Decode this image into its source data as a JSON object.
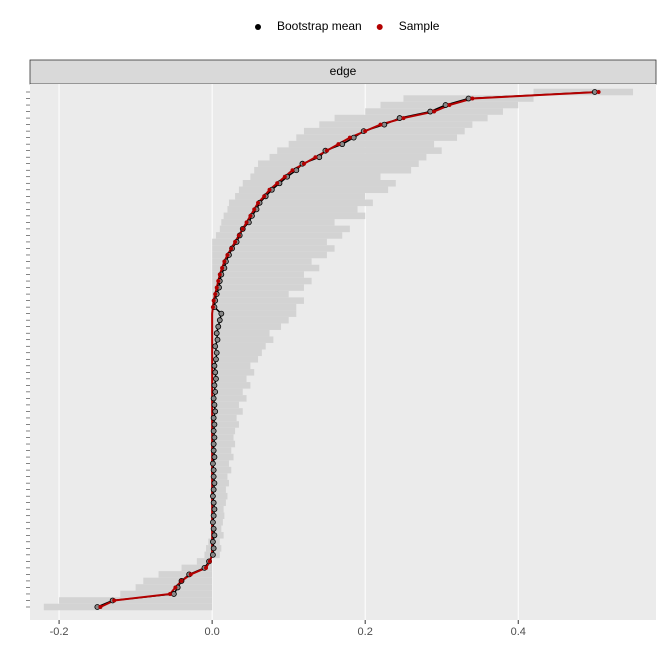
{
  "chart_data": {
    "type": "stability",
    "facet": "edge",
    "series": [
      {
        "name": "Bootstrap mean",
        "color": "#000000",
        "values": [
          -0.15,
          -0.13,
          -0.05,
          -0.045,
          -0.04,
          -0.03,
          -0.01,
          -0.004,
          0.001,
          0.002,
          0.001,
          0.003,
          0.002,
          0.001,
          0.002,
          0.003,
          0.002,
          0.001,
          0.002,
          0.003,
          0.002,
          0.002,
          0.001,
          0.003,
          0.002,
          0.002,
          0.003,
          0.002,
          0.003,
          0.002,
          0.004,
          0.003,
          0.002,
          0.004,
          0.003,
          0.005,
          0.004,
          0.003,
          0.005,
          0.006,
          0.004,
          0.007,
          0.006,
          0.008,
          0.01,
          0.012,
          0.003,
          0.004,
          0.006,
          0.009,
          0.01,
          0.012,
          0.016,
          0.018,
          0.022,
          0.026,
          0.032,
          0.036,
          0.04,
          0.048,
          0.052,
          0.058,
          0.062,
          0.07,
          0.078,
          0.088,
          0.098,
          0.11,
          0.118,
          0.14,
          0.148,
          0.17,
          0.185,
          0.198,
          0.225,
          0.245,
          0.285,
          0.305,
          0.335,
          0.5
        ]
      },
      {
        "name": "Sample",
        "color": "#b30000",
        "values": [
          -0.146,
          -0.128,
          -0.055,
          -0.048,
          -0.04,
          -0.028,
          -0.008,
          -0.003,
          0,
          0,
          0,
          0,
          0,
          0,
          0,
          0,
          0,
          0,
          0,
          0,
          0,
          0,
          0,
          0,
          0,
          0,
          0,
          0,
          0,
          0,
          0,
          0,
          0,
          0,
          0,
          0,
          0,
          0,
          0,
          0,
          0,
          0,
          0,
          0,
          0,
          0,
          0.001,
          0.002,
          0.004,
          0.006,
          0.008,
          0.01,
          0.013,
          0.016,
          0.02,
          0.025,
          0.03,
          0.035,
          0.04,
          0.045,
          0.05,
          0.055,
          0.06,
          0.068,
          0.075,
          0.085,
          0.095,
          0.105,
          0.12,
          0.135,
          0.15,
          0.165,
          0.18,
          0.2,
          0.22,
          0.25,
          0.29,
          0.31,
          0.34,
          0.505
        ]
      }
    ],
    "ci_lower": [
      -0.22,
      -0.2,
      -0.12,
      -0.1,
      -0.09,
      -0.07,
      -0.04,
      -0.02,
      -0.01,
      -0.008,
      -0.005,
      0,
      0,
      0,
      0,
      0,
      0,
      0,
      0,
      0,
      0,
      0,
      0,
      0,
      0,
      0,
      0,
      0,
      0,
      0,
      0,
      0,
      0,
      0,
      0,
      0,
      0,
      0,
      0,
      0,
      0,
      0,
      0,
      0,
      0,
      0,
      0,
      0,
      0,
      0,
      0,
      0,
      0,
      0,
      0,
      0,
      0,
      0.005,
      0.01,
      0.012,
      0.015,
      0.02,
      0.022,
      0.03,
      0.035,
      0.04,
      0.05,
      0.055,
      0.06,
      0.075,
      0.085,
      0.1,
      0.11,
      0.12,
      0.14,
      0.16,
      0.2,
      0.22,
      0.25,
      0.42
    ],
    "ci_upper": [
      0,
      0,
      0,
      0,
      0,
      0,
      0,
      0,
      0.01,
      0.012,
      0.01,
      0.015,
      0.012,
      0.014,
      0.016,
      0.015,
      0.018,
      0.02,
      0.018,
      0.022,
      0.02,
      0.025,
      0.022,
      0.028,
      0.025,
      0.03,
      0.028,
      0.03,
      0.035,
      0.032,
      0.04,
      0.035,
      0.045,
      0.04,
      0.05,
      0.045,
      0.055,
      0.05,
      0.06,
      0.065,
      0.07,
      0.08,
      0.075,
      0.09,
      0.1,
      0.11,
      0.11,
      0.12,
      0.1,
      0.12,
      0.13,
      0.12,
      0.14,
      0.13,
      0.15,
      0.16,
      0.15,
      0.17,
      0.18,
      0.16,
      0.2,
      0.19,
      0.21,
      0.2,
      0.23,
      0.24,
      0.22,
      0.26,
      0.27,
      0.28,
      0.3,
      0.29,
      0.32,
      0.33,
      0.34,
      0.36,
      0.38,
      0.4,
      0.42,
      0.55
    ],
    "ci_color": "#d3d3d3",
    "xlim": [
      -0.238,
      0.58
    ],
    "xticks": [
      -0.2,
      {
        "value": 0,
        "label": "0.0"
      },
      0.2,
      0.4
    ],
    "grid": true,
    "legend": "top"
  }
}
